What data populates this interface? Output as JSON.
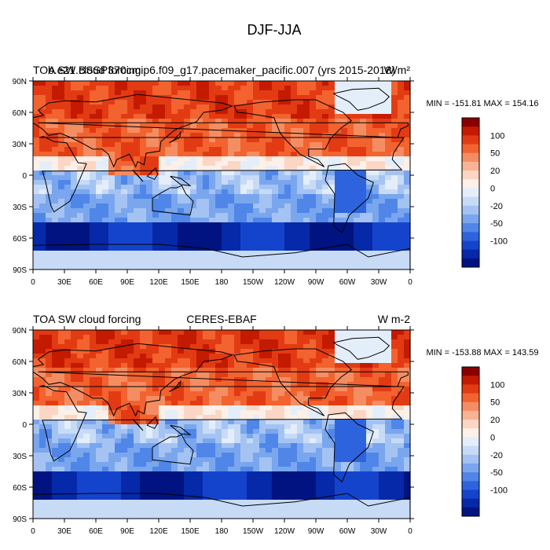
{
  "figure": {
    "title": "DJF-JJA"
  },
  "panels": [
    {
      "title_left": "TOA SW cloud forcing",
      "title_center": "b.e21.BSSP370cmip6.f09_g17.pacemaker_pacific.007 (yrs 2015-2018)",
      "title_right": "W/m²",
      "min_max": "MIN = -151.81 MAX = 154.16"
    },
    {
      "title_left": "TOA SW cloud forcing",
      "title_center": "CERES-EBAF",
      "title_right": "W m-2",
      "min_max": "MIN = -153.88 MAX = 143.59"
    }
  ],
  "axes": {
    "lon_ticks": [
      "0",
      "30E",
      "60E",
      "90E",
      "120E",
      "150E",
      "180",
      "150W",
      "120W",
      "90W",
      "60W",
      "30W",
      "0"
    ],
    "lat_ticks": [
      "90N",
      "60N",
      "30N",
      "0",
      "30S",
      "60S",
      "90S"
    ]
  },
  "colorbar": {
    "labels": [
      "100",
      "50",
      "20",
      "0",
      "-20",
      "-50",
      "-100"
    ],
    "colors": [
      "#8a0000",
      "#c41a00",
      "#e23b14",
      "#f2632f",
      "#f58d63",
      "#f8b395",
      "#fbd6c4",
      "#fdf0e8",
      "#e4eefa",
      "#c7dbf7",
      "#a4c3f3",
      "#7aa6ee",
      "#4f86e8",
      "#2d64de",
      "#1544cc",
      "#0529a8",
      "#001380"
    ]
  }
}
